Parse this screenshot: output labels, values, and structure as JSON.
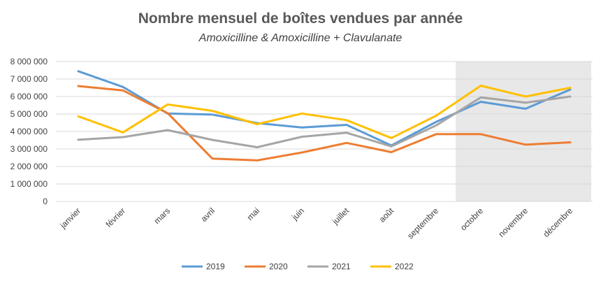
{
  "chart_data": {
    "type": "line",
    "title": "Nombre mensuel de boîtes vendues par année",
    "subtitle": "Amoxicilline & Amoxicilline + Clavulanate",
    "xlabel": "",
    "ylabel": "",
    "ylim": [
      0,
      8000000
    ],
    "yticks": [
      0,
      1000000,
      2000000,
      3000000,
      4000000,
      5000000,
      6000000,
      7000000,
      8000000
    ],
    "ytick_labels": [
      "0",
      "1 000 000",
      "2 000 000",
      "3 000 000",
      "4 000 000",
      "5 000 000",
      "6 000 000",
      "7 000 000",
      "8 000 000"
    ],
    "categories": [
      "janvier",
      "février",
      "mars",
      "avril",
      "mai",
      "juin",
      "juillet",
      "août",
      "septembre",
      "octobre",
      "novembre",
      "décembre"
    ],
    "grid": true,
    "legend_position": "bottom",
    "highlight_region": {
      "from_category": "octobre",
      "to_category": "décembre",
      "color": "#e8e8e8"
    },
    "series": [
      {
        "name": "2019",
        "color": "#5b9bd5",
        "values": [
          7450000,
          6550000,
          5030000,
          4970000,
          4480000,
          4230000,
          4380000,
          3200000,
          4550000,
          5700000,
          5300000,
          6400000
        ]
      },
      {
        "name": "2020",
        "color": "#ed7d31",
        "values": [
          6600000,
          6350000,
          5050000,
          2450000,
          2350000,
          2800000,
          3350000,
          2820000,
          3850000,
          3850000,
          3250000,
          3380000
        ]
      },
      {
        "name": "2021",
        "color": "#a5a5a5",
        "values": [
          3530000,
          3680000,
          4080000,
          3520000,
          3100000,
          3700000,
          3930000,
          3150000,
          4350000,
          5950000,
          5650000,
          6000000
        ]
      },
      {
        "name": "2022",
        "color": "#ffc000",
        "values": [
          4870000,
          3950000,
          5550000,
          5180000,
          4420000,
          5030000,
          4650000,
          3630000,
          4900000,
          6620000,
          6000000,
          6500000
        ]
      }
    ]
  }
}
